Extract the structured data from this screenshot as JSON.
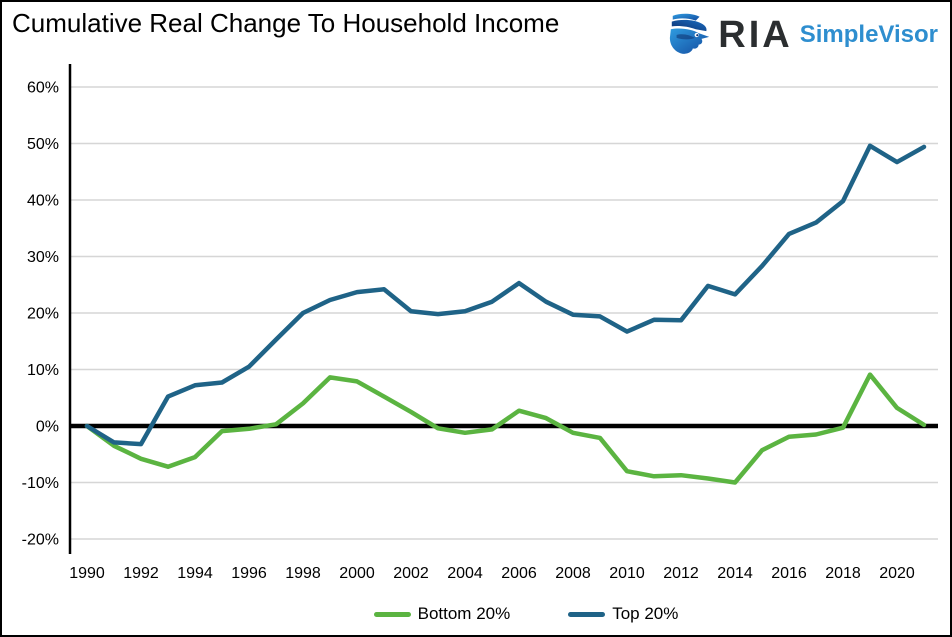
{
  "header": {
    "title": "Cumulative Real Change To Household Income",
    "logo": {
      "brand": "RIA",
      "product": "SimpleVisor"
    }
  },
  "colors": {
    "bottom20": "#5bb441",
    "top20": "#1f6387",
    "gridline": "#d6d6d6",
    "zero_line": "#000000",
    "axis_line": "#000000",
    "brand_blue": "#2e8ecf",
    "brand_dark": "#2b2e30"
  },
  "chart_data": {
    "type": "line",
    "title": "Cumulative Real Change To Household Income",
    "x": [
      1990,
      1991,
      1992,
      1993,
      1994,
      1995,
      1996,
      1997,
      1998,
      1999,
      2000,
      2001,
      2002,
      2003,
      2004,
      2005,
      2006,
      2007,
      2008,
      2009,
      2010,
      2011,
      2012,
      2013,
      2014,
      2015,
      2016,
      2017,
      2018,
      2019,
      2020,
      2021
    ],
    "series": [
      {
        "name": "Bottom 20%",
        "color": "#5bb441",
        "values": [
          0,
          -3.5,
          -5.8,
          -7.2,
          -5.5,
          -0.9,
          -0.5,
          0.3,
          4.0,
          8.6,
          7.9,
          5.2,
          2.5,
          -0.4,
          -1.2,
          -0.6,
          2.7,
          1.4,
          -1.2,
          -2.1,
          -8.0,
          -8.9,
          -8.7,
          -9.3,
          -10.0,
          -4.3,
          -1.9,
          -1.5,
          -0.3,
          9.1,
          3.2,
          0.2
        ]
      },
      {
        "name": "Top 20%",
        "color": "#1f6387",
        "values": [
          0,
          -2.9,
          -3.2,
          5.2,
          7.2,
          7.7,
          10.5,
          15.3,
          20.0,
          22.3,
          23.7,
          24.2,
          20.3,
          19.8,
          20.3,
          22.0,
          25.3,
          22.0,
          19.7,
          19.4,
          16.7,
          18.8,
          18.7,
          24.8,
          23.3,
          28.3,
          34.0,
          36.0,
          39.8,
          49.6,
          46.7,
          49.4
        ]
      }
    ],
    "ylim": [
      -20,
      60
    ],
    "ytick_step": 10,
    "ytick_labels": [
      "-20%",
      "-10%",
      "0%",
      "10%",
      "20%",
      "30%",
      "40%",
      "50%",
      "60%"
    ],
    "xticks": [
      1990,
      1992,
      1994,
      1996,
      1998,
      2000,
      2002,
      2004,
      2006,
      2008,
      2010,
      2012,
      2014,
      2016,
      2018,
      2020
    ],
    "grid": true,
    "zero_line": true,
    "legend_position": "bottom"
  },
  "legend": {
    "items": [
      {
        "label": "Bottom 20%"
      },
      {
        "label": "Top 20%"
      }
    ]
  }
}
